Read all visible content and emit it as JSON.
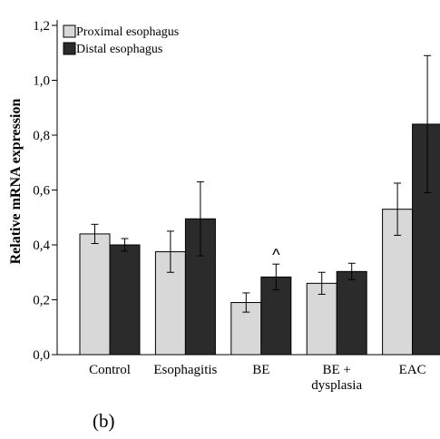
{
  "chart_data": {
    "type": "bar",
    "ylabel": "Relative mRNA expression",
    "xlabel": "",
    "ylim": [
      0,
      1.2
    ],
    "yticks": [
      0,
      0.2,
      0.4,
      0.6,
      0.8,
      1.0,
      1.2
    ],
    "yticks_labels": [
      "0,0",
      "0,2",
      "0,4",
      "0,6",
      "0,8",
      "1,0",
      "1,2"
    ],
    "categories": [
      "Control",
      "Esophagitis",
      "BE",
      "BE +\ndysplasia",
      "EAC"
    ],
    "series": [
      {
        "name": "Proximal esophagus",
        "color": "#d8d8d8",
        "values": [
          0.44,
          0.375,
          0.19,
          0.26,
          0.53
        ],
        "errors": [
          0.035,
          0.075,
          0.035,
          0.04,
          0.095
        ]
      },
      {
        "name": "Distal esophagus",
        "color": "#2b2b2b",
        "values": [
          0.4,
          0.495,
          0.283,
          0.303,
          0.84
        ],
        "errors": [
          0.023,
          0.135,
          0.047,
          0.03,
          0.25
        ]
      }
    ],
    "annotations": [
      {
        "category": "BE",
        "series": 1,
        "text": "^"
      }
    ],
    "legend_position": "top-left",
    "grid": false
  },
  "caption": "(b)"
}
